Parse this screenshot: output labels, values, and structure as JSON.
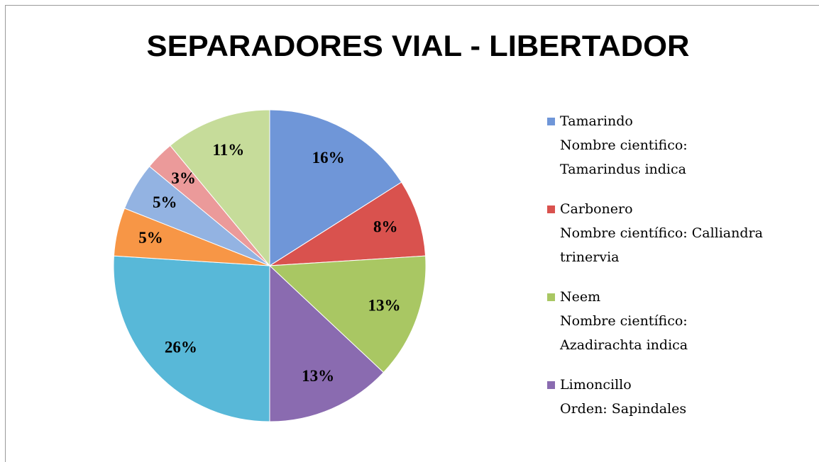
{
  "chart_data": {
    "type": "pie",
    "title": "SEPARADORES VIAL - LIBERTADOR",
    "categories": [
      "Tamarindo\nNombre cientifico:\nTamarindus indica",
      "Carbonero\nNombre científico: Calliandra\ntrinervia",
      "Neem\nNombre científico:\nAzadirachta indica",
      "Limoncillo\nOrden: Sapindales",
      null,
      null,
      null,
      null,
      null
    ],
    "values": [
      16,
      8,
      13,
      13,
      26,
      5,
      5,
      3,
      11
    ],
    "value_labels": [
      "16%",
      "8%",
      "13%",
      "13%",
      "26%",
      "5%",
      "5%",
      "3%",
      "11%"
    ],
    "colors": [
      "#6f96d8",
      "#d9524e",
      "#a9c763",
      "#8a6bb0",
      "#58b8d8",
      "#f79646",
      "#93b3e2",
      "#eb9a9a",
      "#c6dc9a"
    ],
    "legend": "right"
  }
}
